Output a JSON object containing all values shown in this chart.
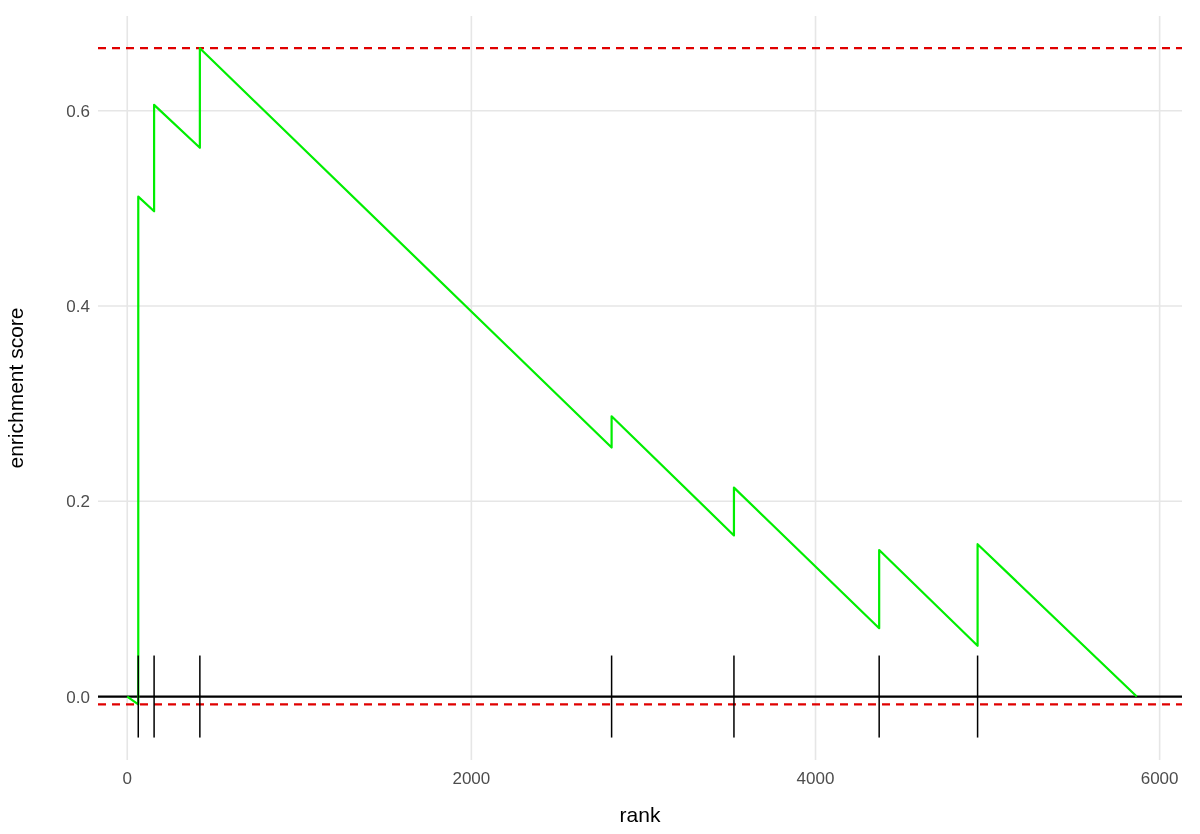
{
  "chart_data": {
    "type": "line",
    "xlabel": "rank",
    "ylabel": "enrichment score",
    "xlim": [
      -170,
      6130
    ],
    "ylim": [
      -0.065,
      0.697
    ],
    "xticks": [
      0,
      2000,
      4000,
      6000
    ],
    "yticks": [
      {
        "value": 0,
        "label": "0.0"
      },
      {
        "value": 0.2,
        "label": "0.2"
      },
      {
        "value": 0.4,
        "label": "0.4"
      },
      {
        "value": 0.6,
        "label": "0.6"
      }
    ],
    "grid": true,
    "series": [
      {
        "color": "#00ee00",
        "x": [
          0,
          64,
          64,
          64,
          64,
          156,
          156,
          422,
          422,
          422,
          2815,
          2815,
          3526,
          3526,
          4370,
          4370,
          4942,
          4942,
          5867
        ],
        "values": [
          0,
          -0.008,
          0.17,
          0.34,
          0.512,
          0.497,
          0.606,
          0.562,
          0.613,
          0.664,
          0.255,
          0.287,
          0.165,
          0.214,
          0.07,
          0.15,
          0.052,
          0.156,
          0
        ]
      },
      {
        "type": "bar",
        "color": "#000000",
        "x": [
          64,
          156,
          422,
          2815,
          3526,
          4370,
          4942
        ],
        "base": [
          -0.042,
          -0.042,
          -0.042,
          -0.042,
          -0.042,
          -0.042,
          -0.042
        ],
        "values": [
          0.084,
          0.084,
          0.084,
          0.084,
          0.084,
          0.084,
          0.084
        ]
      }
    ],
    "ref_lines": [
      {
        "axis": "y",
        "value": 0,
        "color": "#000000",
        "line_style": "solid"
      },
      {
        "axis": "y",
        "value": 0.664,
        "color": "#e00000",
        "line_style": "dashed"
      },
      {
        "axis": "y",
        "value": -0.008,
        "color": "#e00000",
        "line_style": "dashed"
      }
    ]
  }
}
